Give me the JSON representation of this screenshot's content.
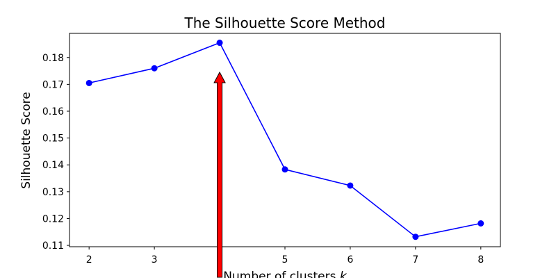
{
  "chart_data": {
    "type": "line",
    "title": "The Silhouette Score Method",
    "xlabel": "Number of clusters ",
    "xlabel_var": "k",
    "ylabel": "Silhouette Score",
    "x": [
      2,
      3,
      4,
      5,
      6,
      7,
      8
    ],
    "series": [
      {
        "values": [
          0.1705,
          0.176,
          0.1855,
          0.1383,
          0.1323,
          0.1132,
          0.1182
        ]
      }
    ],
    "xlim": [
      1.7,
      8.3
    ],
    "ylim": [
      0.1095,
      0.189
    ],
    "xticks": [
      "2",
      "3",
      "4",
      "5",
      "6",
      "7",
      "8"
    ],
    "yticks": [
      "0.11",
      "0.12",
      "0.13",
      "0.14",
      "0.15",
      "0.16",
      "0.17",
      "0.18"
    ],
    "grid": false,
    "annotation": {
      "type": "arrow",
      "x": 4,
      "y_from": 0.1095,
      "y_to": 0.1745
    },
    "colors": {
      "line": "#0000ff",
      "marker": "#0000ff",
      "arrow_fill": "#ff0000",
      "arrow_edge": "#000000"
    }
  }
}
